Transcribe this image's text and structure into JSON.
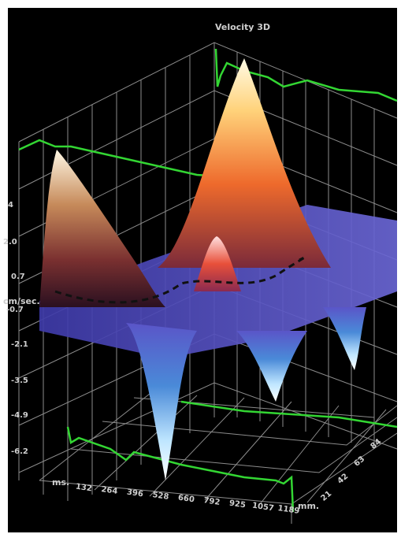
{
  "chart_data": {
    "type": "surface-3d",
    "title": "Velocity 3D",
    "x_axis": {
      "unit": "ms.",
      "ticks": [
        "132",
        "264",
        "396",
        "528",
        "660",
        "792",
        "925",
        "1057",
        "1189"
      ]
    },
    "y_axis": {
      "unit": "mm.",
      "ticks": [
        "21",
        "42",
        "63",
        "84"
      ]
    },
    "z_axis": {
      "unit": "cm/sec.",
      "ticks": [
        "4",
        "2.0",
        "0.7",
        "-0.7",
        "-2.1",
        "-3.5",
        "-4.9",
        "-6.2"
      ]
    },
    "features": [
      {
        "kind": "peak",
        "x_ms": 500,
        "y_mm": 80,
        "z": 6.5
      },
      {
        "kind": "peak",
        "x_ms": 100,
        "y_mm": 50,
        "z": 5.0
      },
      {
        "kind": "peak",
        "x_ms": 560,
        "y_mm": 40,
        "z": 2.2
      },
      {
        "kind": "trough",
        "x_ms": 500,
        "y_mm": 10,
        "z": -6.2
      },
      {
        "kind": "trough",
        "x_ms": 820,
        "y_mm": 25,
        "z": -3.5
      },
      {
        "kind": "trough",
        "x_ms": 1000,
        "y_mm": 40,
        "z": -2.5
      }
    ],
    "colors": {
      "background": "#000000",
      "grid": "#8c8c8c",
      "trace": "#33d633",
      "surface_high": "#fff4c8",
      "surface_mid": "#e85a2a",
      "surface_base": "#5a55c8",
      "surface_low": "#eaf4ff"
    }
  }
}
